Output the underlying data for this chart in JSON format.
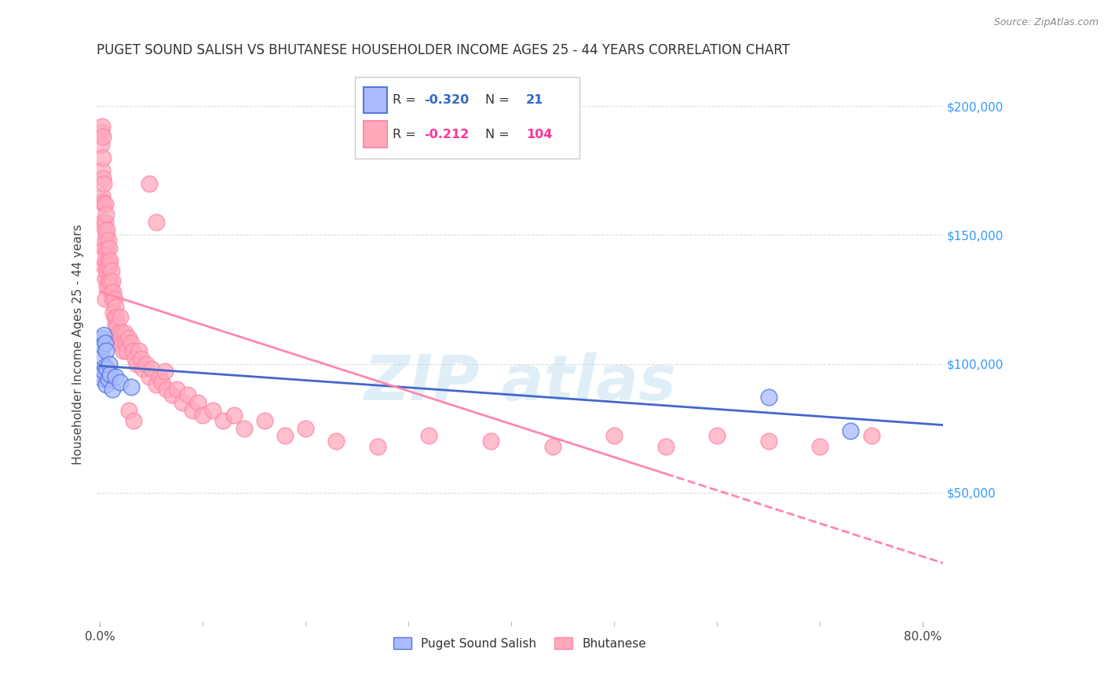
{
  "title": "PUGET SOUND SALISH VS BHUTANESE HOUSEHOLDER INCOME AGES 25 - 44 YEARS CORRELATION CHART",
  "source": "Source: ZipAtlas.com",
  "ylabel": "Householder Income Ages 25 - 44 years",
  "ytick_labels": [
    "$50,000",
    "$100,000",
    "$150,000",
    "$200,000"
  ],
  "ytick_values": [
    50000,
    100000,
    150000,
    200000
  ],
  "ylim": [
    0,
    215000
  ],
  "xlim": [
    -0.003,
    0.82
  ],
  "legend_blue_R": "-0.320",
  "legend_blue_N": "21",
  "legend_pink_R": "-0.212",
  "legend_pink_N": "104",
  "blue_fill": "#AABBFF",
  "blue_edge": "#5577DD",
  "pink_fill": "#FFAABB",
  "pink_edge": "#FF88AA",
  "blue_line_color": "#4466CC",
  "pink_line_color": "#FF88AA",
  "watermark_color": "#BBDDEE",
  "blue_x": [
    0.001,
    0.002,
    0.002,
    0.003,
    0.003,
    0.004,
    0.004,
    0.005,
    0.005,
    0.006,
    0.006,
    0.007,
    0.008,
    0.009,
    0.01,
    0.012,
    0.015,
    0.02,
    0.03,
    0.65,
    0.73
  ],
  "blue_y": [
    103000,
    110000,
    96000,
    107000,
    94000,
    111000,
    97000,
    108000,
    99000,
    105000,
    92000,
    98000,
    94000,
    100000,
    96000,
    90000,
    95000,
    93000,
    91000,
    87000,
    74000
  ],
  "pink_x": [
    0.001,
    0.001,
    0.002,
    0.002,
    0.002,
    0.003,
    0.003,
    0.003,
    0.003,
    0.003,
    0.004,
    0.004,
    0.004,
    0.004,
    0.004,
    0.005,
    0.005,
    0.005,
    0.005,
    0.005,
    0.005,
    0.006,
    0.006,
    0.006,
    0.006,
    0.007,
    0.007,
    0.007,
    0.007,
    0.008,
    0.008,
    0.008,
    0.009,
    0.009,
    0.009,
    0.01,
    0.01,
    0.011,
    0.011,
    0.012,
    0.012,
    0.013,
    0.013,
    0.014,
    0.014,
    0.015,
    0.015,
    0.016,
    0.016,
    0.017,
    0.018,
    0.019,
    0.02,
    0.021,
    0.022,
    0.023,
    0.024,
    0.025,
    0.026,
    0.028,
    0.03,
    0.032,
    0.034,
    0.036,
    0.038,
    0.04,
    0.042,
    0.045,
    0.048,
    0.05,
    0.055,
    0.058,
    0.06,
    0.063,
    0.065,
    0.07,
    0.075,
    0.08,
    0.085,
    0.09,
    0.095,
    0.1,
    0.11,
    0.12,
    0.13,
    0.14,
    0.16,
    0.18,
    0.2,
    0.23,
    0.27,
    0.32,
    0.38,
    0.44,
    0.5,
    0.55,
    0.6,
    0.65,
    0.7,
    0.75,
    0.028,
    0.033,
    0.048,
    0.055
  ],
  "pink_y": [
    185000,
    190000,
    192000,
    175000,
    165000,
    188000,
    180000,
    172000,
    163000,
    155000,
    170000,
    162000,
    153000,
    145000,
    138000,
    162000,
    155000,
    148000,
    140000,
    133000,
    125000,
    158000,
    150000,
    143000,
    136000,
    152000,
    145000,
    138000,
    130000,
    148000,
    140000,
    132000,
    145000,
    138000,
    130000,
    140000,
    132000,
    136000,
    128000,
    132000,
    125000,
    128000,
    120000,
    125000,
    118000,
    122000,
    115000,
    118000,
    111000,
    115000,
    112000,
    108000,
    118000,
    112000,
    108000,
    105000,
    112000,
    108000,
    105000,
    110000,
    108000,
    105000,
    102000,
    100000,
    105000,
    102000,
    98000,
    100000,
    95000,
    98000,
    92000,
    95000,
    93000,
    97000,
    90000,
    88000,
    90000,
    85000,
    88000,
    82000,
    85000,
    80000,
    82000,
    78000,
    80000,
    75000,
    78000,
    72000,
    75000,
    70000,
    68000,
    72000,
    70000,
    68000,
    72000,
    68000,
    72000,
    70000,
    68000,
    72000,
    82000,
    78000,
    170000,
    155000
  ]
}
